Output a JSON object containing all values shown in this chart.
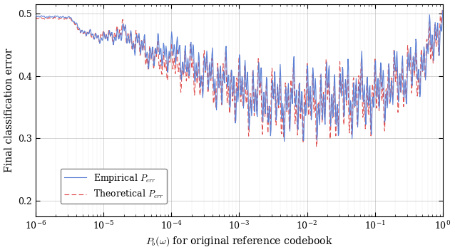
{
  "title": "",
  "xlabel": "$P_b(\\omega)$ for original reference codebook",
  "ylabel": "Final classification error",
  "xlim": [
    1e-06,
    1.0
  ],
  "ylim": [
    0.175,
    0.515
  ],
  "yticks": [
    0.2,
    0.3,
    0.4,
    0.5
  ],
  "empirical_color": "#5B7FD4",
  "theoretical_color": "#E05050",
  "legend_labels": [
    "Empirical $P_{err}$",
    "Theoretical $P_{err}$"
  ],
  "figsize": [
    6.38,
    3.54
  ],
  "dpi": 100
}
